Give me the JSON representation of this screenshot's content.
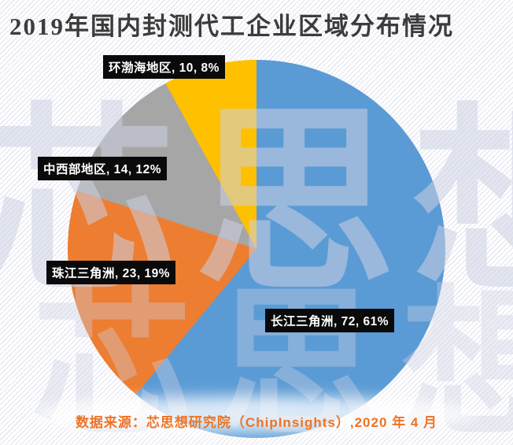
{
  "title": "2019年国内封测代工企业区域分布情况",
  "chart_data": {
    "type": "pie",
    "title": "2019年国内封测代工企业区域分布情况",
    "unit_note": "label format: region, count, percent",
    "start_angle_deg": 0,
    "direction": "clockwise",
    "legend_position": "none",
    "slices": [
      {
        "label": "长江三角洲",
        "value": 72,
        "percent": "61%",
        "color": "#5B9BD5"
      },
      {
        "label": "珠江三角洲",
        "value": 23,
        "percent": "19%",
        "color": "#ED7D31"
      },
      {
        "label": "中西部地区",
        "value": 14,
        "percent": "12%",
        "color": "#A6A6A6"
      },
      {
        "label": "环渤海地区",
        "value": 10,
        "percent": "8%",
        "color": "#FFC000"
      }
    ],
    "data_labels": [
      "环渤海地区, 10, 8%",
      "中西部地区, 14, 12%",
      "珠江三角洲, 23, 19%",
      "长江三角洲, 72, 61%"
    ]
  },
  "watermark": {
    "text": "芯思想"
  },
  "footer": {
    "source_text": "数据来源：芯思想研究院（ChipInsights）,2020 年 4 月"
  },
  "colors": {
    "title": "#3C3C3C",
    "label_bg": "#0A0A0A",
    "label_text": "#FFFFFF",
    "footer_text": "#ED7325",
    "background": "#FFFFFF",
    "stripe": "#E9EAF3"
  }
}
